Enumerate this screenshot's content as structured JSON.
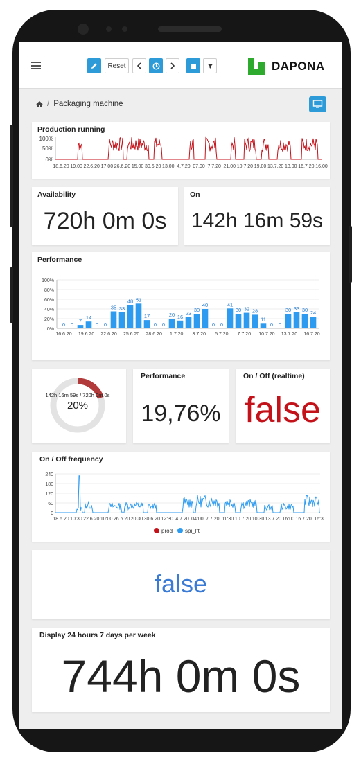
{
  "toolbar": {
    "reset_label": "Reset"
  },
  "brand": {
    "name": "DAPONA",
    "logo_color": "#2eaa2e"
  },
  "breadcrumb": {
    "page": "Packaging machine"
  },
  "production": {
    "title": "Production running",
    "y_ticks": [
      "100%",
      "50%",
      "0%"
    ],
    "x_ticks": [
      "18.6.20",
      "19.00",
      "22.6.20",
      "17.00",
      "26.6.20",
      "15.00",
      "30.6.20",
      "13.00",
      "4.7.20",
      "07.00",
      "7.7.20",
      "21.00",
      "10.7.20",
      "19.00",
      "13.7.20",
      "13.00",
      "16.7.20",
      "16.00"
    ]
  },
  "availability": {
    "title": "Availability",
    "value": "720h 0m 0s"
  },
  "on": {
    "title": "On",
    "value": "142h 16m 59s"
  },
  "performance_chart": {
    "title": "Performance",
    "chart_data": {
      "type": "bar",
      "y_ticks": [
        "100%",
        "80%",
        "60%",
        "40%",
        "20%",
        "0%"
      ],
      "ylim": [
        0,
        100
      ],
      "values": [
        0,
        0,
        7,
        14,
        0,
        0,
        35,
        33,
        48,
        51,
        17,
        0,
        0,
        20,
        16,
        23,
        30,
        40,
        0,
        0,
        41,
        30,
        32,
        28,
        11,
        0,
        0,
        30,
        33,
        30,
        24
      ],
      "x_ticks": [
        "16.6.20",
        "19.6.20",
        "22.6.20",
        "25.6.20",
        "28.6.20",
        "1.7.20",
        "3.7.20",
        "5.7.20",
        "7.7.20",
        "10.7.20",
        "13.7.20",
        "16.7.20"
      ],
      "color": "#2d9bf0"
    }
  },
  "donut": {
    "label": "142h 16m 59s / 720h 0m 0s",
    "percent_text": "20%",
    "percent": 20,
    "color": "#b33a3a"
  },
  "performance_value": {
    "title": "Performance",
    "value": "19,76%"
  },
  "onoff_realtime": {
    "title": "On / Off (realtime)",
    "value": "false",
    "color": "#c4121a"
  },
  "frequency": {
    "title": "On / Off frequency",
    "y_ticks": [
      "240",
      "180",
      "120",
      "60",
      "0"
    ],
    "x_ticks": [
      "18.6.20",
      "10:30",
      "22.6.20",
      "10:00",
      "26.6.20",
      "20:30",
      "30.6.20",
      "12:30",
      "4.7.20",
      "04:00",
      "7.7.20",
      "11:30",
      "10.7.20",
      "10:30",
      "13.7.20",
      "16:00",
      "16.7.20",
      "16:3"
    ],
    "legend": [
      {
        "name": "prod",
        "color": "#c4121a"
      },
      {
        "name": "spi_lft",
        "color": "#2d9bf0"
      }
    ]
  },
  "status_false": {
    "value": "false",
    "color": "#3a7bd5"
  },
  "display24": {
    "title": "Display 24 hours 7 days per week",
    "value": "744h 0m 0s"
  }
}
